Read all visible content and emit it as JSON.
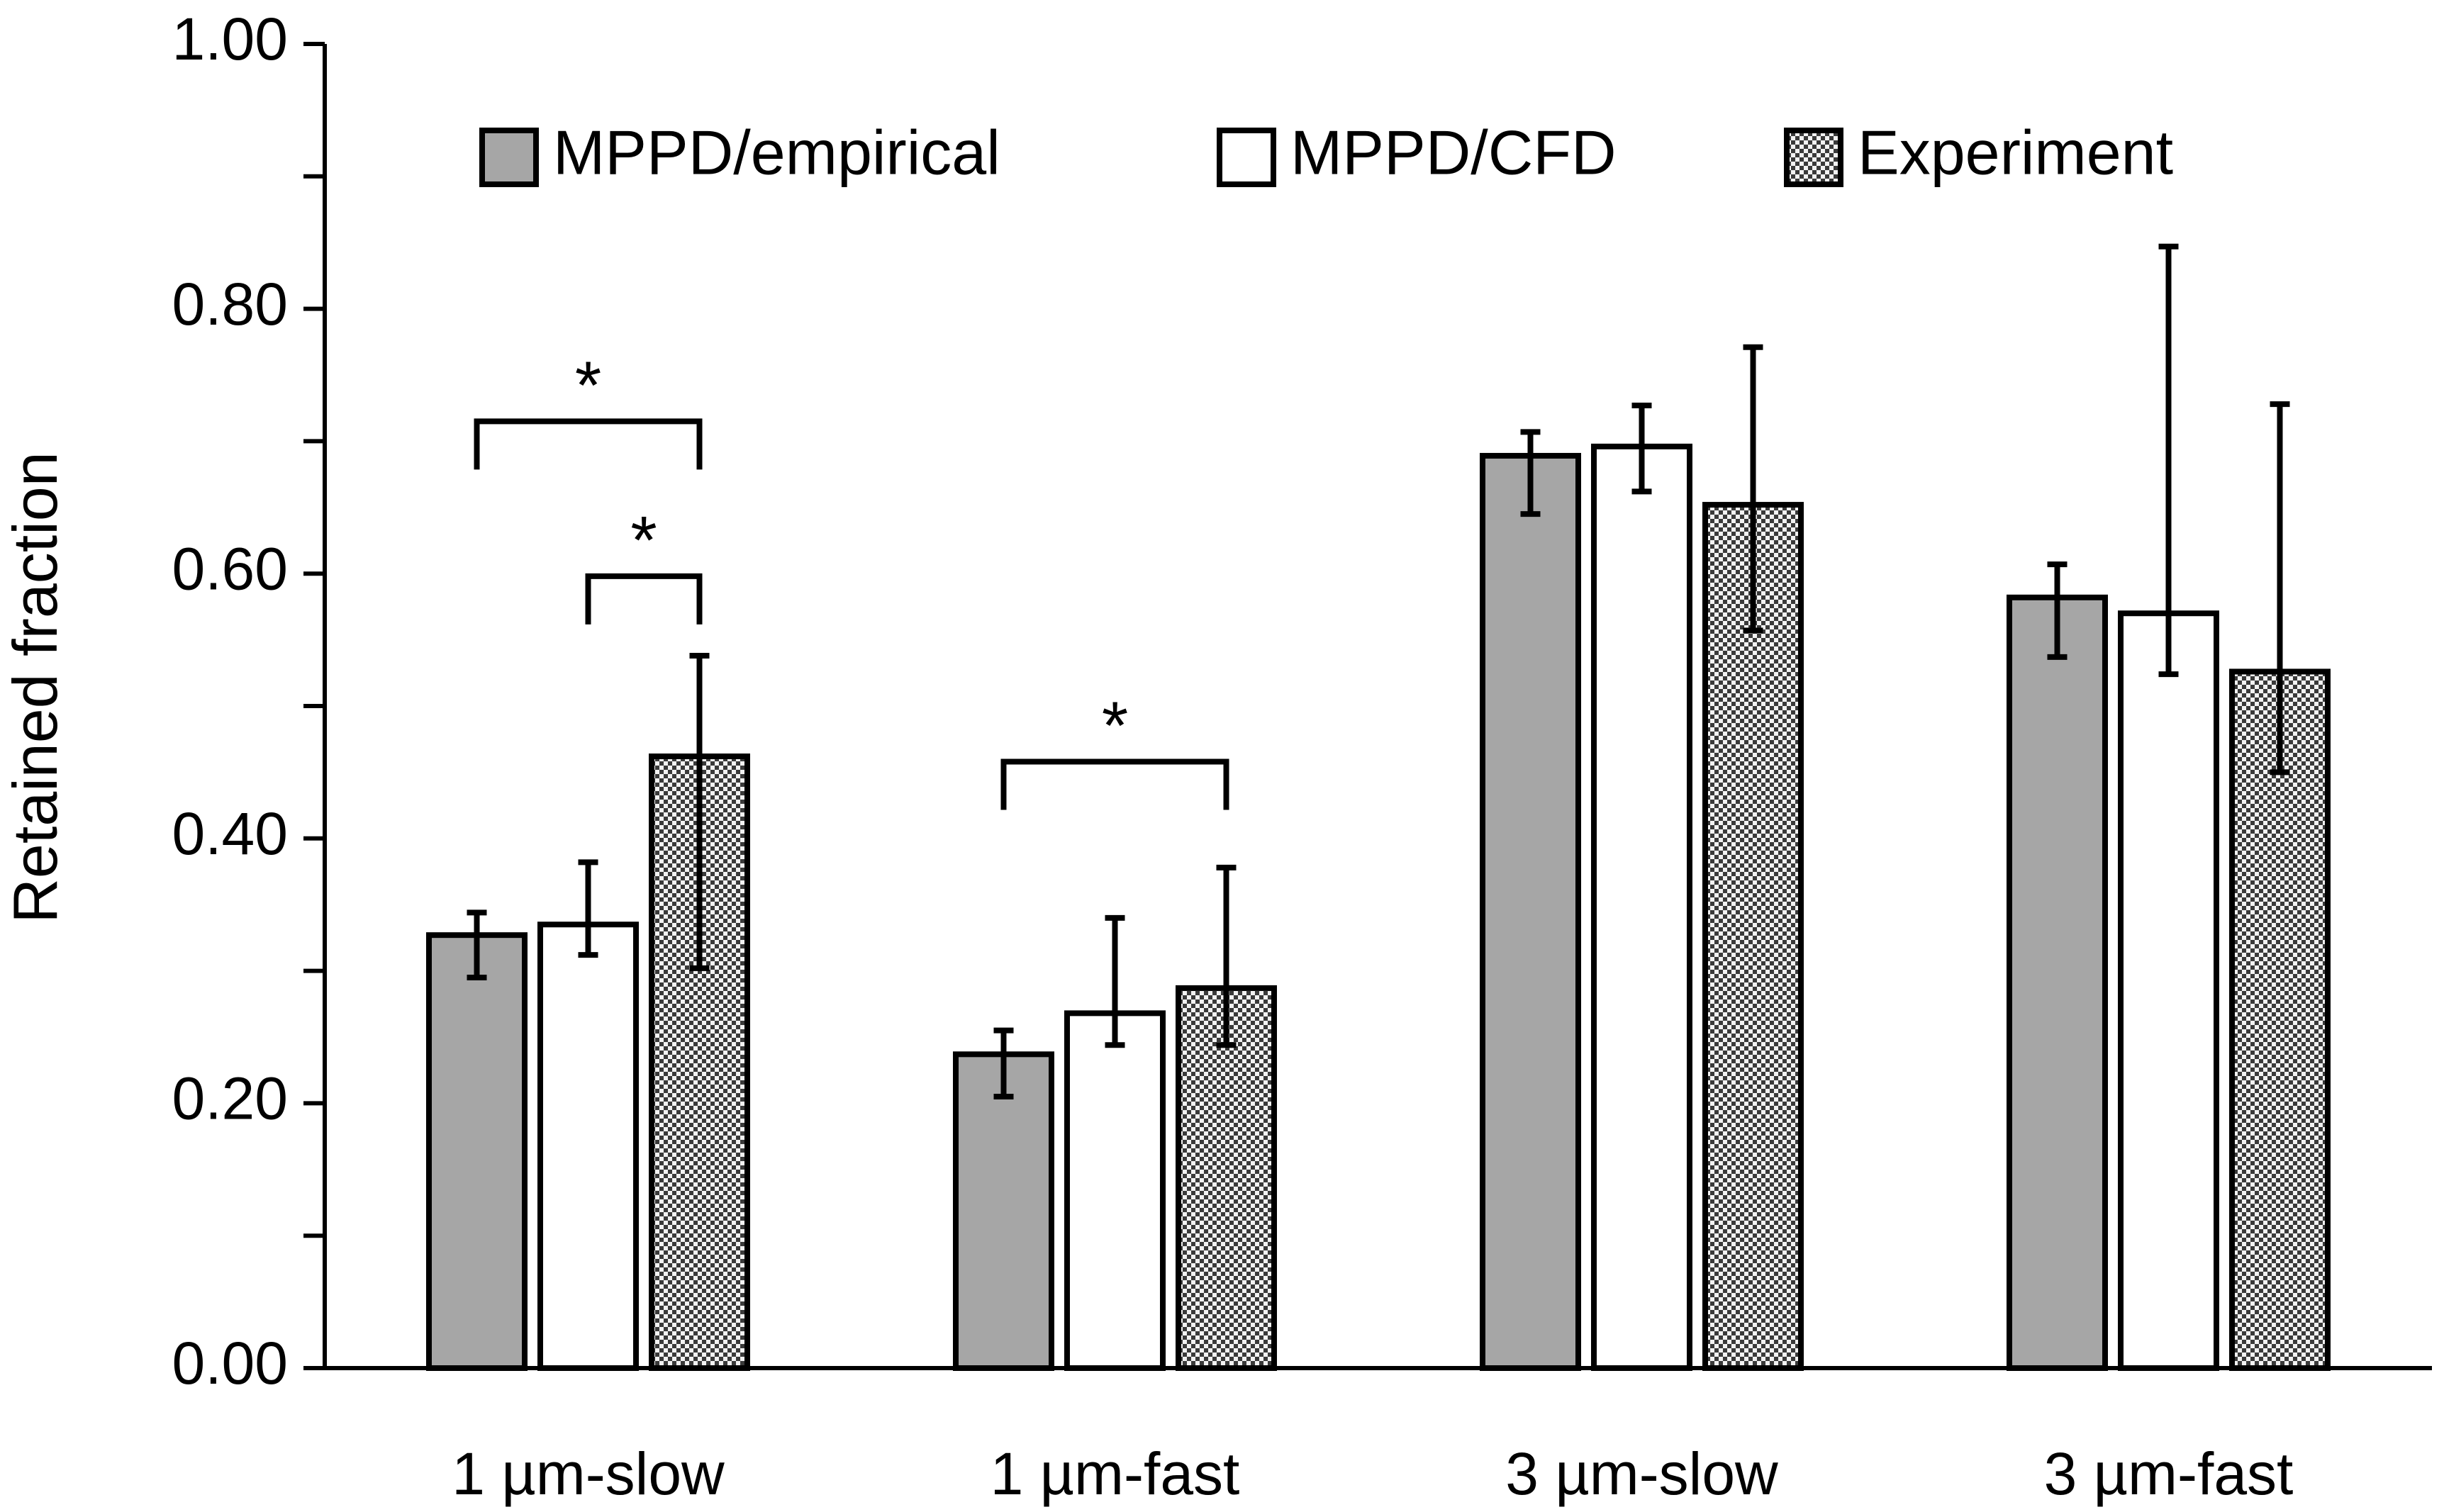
{
  "chart_data": {
    "type": "bar",
    "title": "",
    "xlabel": "",
    "ylabel": "Retained fraction",
    "ylim": [
      0,
      1.0
    ],
    "yticks": [
      "0.00",
      "0.20",
      "0.40",
      "0.60",
      "0.80",
      "1.00"
    ],
    "grid": false,
    "legend_position": "top",
    "categories": [
      "1 µm-slow",
      "1 µm-fast",
      "3 µm-slow",
      "3 µm-fast"
    ],
    "series": [
      {
        "name": "MPPD/empirical",
        "fill": "#a6a6a6",
        "pattern": "solid",
        "values": [
          0.327,
          0.237,
          0.689,
          0.582
        ],
        "err_low": [
          0.295,
          0.205,
          0.645,
          0.537
        ],
        "err_high": [
          0.344,
          0.255,
          0.707,
          0.607
        ]
      },
      {
        "name": "MPPD/CFD",
        "fill": "#ffffff",
        "pattern": "solid",
        "values": [
          0.335,
          0.268,
          0.696,
          0.57
        ],
        "err_low": [
          0.312,
          0.244,
          0.662,
          0.524
        ],
        "err_high": [
          0.382,
          0.34,
          0.727,
          0.847
        ]
      },
      {
        "name": "Experiment",
        "fill": "#d9d9d9",
        "pattern": "checker",
        "values": [
          0.462,
          0.287,
          0.652,
          0.526
        ],
        "err_low": [
          0.302,
          0.244,
          0.557,
          0.45
        ],
        "err_high": [
          0.538,
          0.378,
          0.771,
          0.728
        ]
      }
    ],
    "significance": [
      {
        "category": 0,
        "from_series": 0,
        "to_series": 2,
        "label": "*",
        "y": 0.715
      },
      {
        "category": 0,
        "from_series": 1,
        "to_series": 2,
        "label": "*",
        "y": 0.598
      },
      {
        "category": 1,
        "from_series": 0,
        "to_series": 2,
        "label": "*",
        "y": 0.458
      }
    ]
  }
}
